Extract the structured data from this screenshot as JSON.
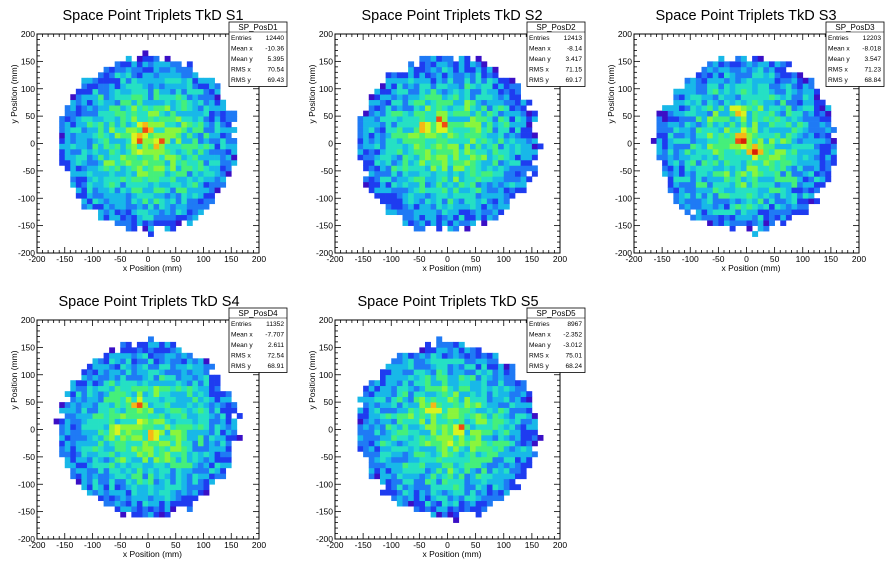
{
  "page": {
    "background": "#ffffff"
  },
  "palette": [
    "#3b0fc6",
    "#1e3cf0",
    "#1f7af5",
    "#18b8e8",
    "#25e0c4",
    "#45ef7a",
    "#8af53c",
    "#d8f41f",
    "#f5b716",
    "#f04b13",
    "#d81e0a"
  ],
  "chart_data": [
    {
      "type": "heatmap",
      "title": "Space Point Triplets TkD S1",
      "xlabel": "x Position (mm)",
      "ylabel": "y Position (mm)",
      "xlim": [
        -200,
        200
      ],
      "ylim": [
        -200,
        200
      ],
      "xticks": [
        "-200",
        "-150",
        "-100",
        "-50",
        "0",
        "50",
        "100",
        "150",
        "200"
      ],
      "yticks": [
        "200",
        "150",
        "100",
        "50",
        "0",
        "-50",
        "-100",
        "-150",
        "-200"
      ],
      "bins": 40,
      "disc_radius": 160,
      "hot_spots": [
        [
          20,
          5
        ],
        [
          -20,
          10
        ],
        [
          -5,
          30
        ]
      ],
      "seed": 11,
      "stats": {
        "name": "SP_PosD1",
        "rows": [
          [
            "Entries",
            "12440"
          ],
          [
            "Mean x",
            "-10.36"
          ],
          [
            "Mean y",
            "5.395"
          ],
          [
            "RMS x",
            "70.54"
          ],
          [
            "RMS y",
            "69.43"
          ]
        ]
      }
    },
    {
      "type": "heatmap",
      "title": "Space Point Triplets TkD S2",
      "xlabel": "x Position (mm)",
      "ylabel": "y Position (mm)",
      "xlim": [
        -200,
        200
      ],
      "ylim": [
        -200,
        200
      ],
      "xticks": [
        "-200",
        "-150",
        "-100",
        "-50",
        "0",
        "50",
        "100",
        "150",
        "200"
      ],
      "yticks": [
        "200",
        "150",
        "100",
        "50",
        "0",
        "-50",
        "-100",
        "-150",
        "-200"
      ],
      "bins": 40,
      "disc_radius": 160,
      "hot_spots": [
        [
          -10,
          40
        ],
        [
          -40,
          30
        ]
      ],
      "seed": 23,
      "stats": {
        "name": "SP_PosD2",
        "rows": [
          [
            "Entries",
            "12413"
          ],
          [
            "Mean x",
            "-8.14"
          ],
          [
            "Mean y",
            "3.417"
          ],
          [
            "RMS x",
            "71.15"
          ],
          [
            "RMS y",
            "69.17"
          ]
        ]
      }
    },
    {
      "type": "heatmap",
      "title": "Space Point Triplets TkD S3",
      "xlabel": "x Position (mm)",
      "ylabel": "y Position (mm)",
      "xlim": [
        -200,
        200
      ],
      "ylim": [
        -200,
        200
      ],
      "xticks": [
        "-200",
        "-150",
        "-100",
        "-50",
        "0",
        "50",
        "100",
        "150",
        "200"
      ],
      "yticks": [
        "200",
        "150",
        "100",
        "50",
        "0",
        "-50",
        "-100",
        "-150",
        "-200"
      ],
      "bins": 40,
      "disc_radius": 160,
      "hot_spots": [
        [
          -10,
          5
        ],
        [
          15,
          -15
        ],
        [
          -15,
          60
        ]
      ],
      "seed": 37,
      "stats": {
        "name": "SP_PosD3",
        "rows": [
          [
            "Entries",
            "12203"
          ],
          [
            "Mean x",
            "-8.018"
          ],
          [
            "Mean y",
            "3.547"
          ],
          [
            "RMS x",
            "71.23"
          ],
          [
            "RMS y",
            "68.84"
          ]
        ]
      }
    },
    {
      "type": "heatmap",
      "title": "Space Point Triplets TkD S4",
      "xlabel": "x Position (mm)",
      "ylabel": "y Position (mm)",
      "xlim": [
        -200,
        200
      ],
      "ylim": [
        -200,
        200
      ],
      "xticks": [
        "-200",
        "-150",
        "-100",
        "-50",
        "0",
        "50",
        "100",
        "150",
        "200"
      ],
      "yticks": [
        "200",
        "150",
        "100",
        "50",
        "0",
        "-50",
        "-100",
        "-150",
        "-200"
      ],
      "bins": 40,
      "disc_radius": 160,
      "hot_spots": [
        [
          -15,
          45
        ],
        [
          10,
          -10
        ],
        [
          -60,
          0
        ]
      ],
      "seed": 53,
      "stats": {
        "name": "SP_PosD4",
        "rows": [
          [
            "Entries",
            "11352"
          ],
          [
            "Mean x",
            "-7.707"
          ],
          [
            "Mean y",
            "2.611"
          ],
          [
            "RMS x",
            "72.54"
          ],
          [
            "RMS y",
            "68.91"
          ]
        ]
      }
    },
    {
      "type": "heatmap",
      "title": "Space Point Triplets TkD S5",
      "xlabel": "x Position (mm)",
      "ylabel": "y Position (mm)",
      "xlim": [
        -200,
        200
      ],
      "ylim": [
        -200,
        200
      ],
      "xticks": [
        "-200",
        "-150",
        "-100",
        "-50",
        "0",
        "50",
        "100",
        "150",
        "200"
      ],
      "yticks": [
        "200",
        "150",
        "100",
        "50",
        "0",
        "-50",
        "-100",
        "-150",
        "-200"
      ],
      "bins": 40,
      "disc_radius": 160,
      "hot_spots": [
        [
          20,
          0
        ],
        [
          -25,
          40
        ]
      ],
      "seed": 71,
      "stats": {
        "name": "SP_PosD5",
        "rows": [
          [
            "Entries",
            "8967"
          ],
          [
            "Mean x",
            "-2.352"
          ],
          [
            "Mean y",
            "-3.012"
          ],
          [
            "RMS x",
            "75.01"
          ],
          [
            "RMS y",
            "68.24"
          ]
        ]
      }
    }
  ]
}
